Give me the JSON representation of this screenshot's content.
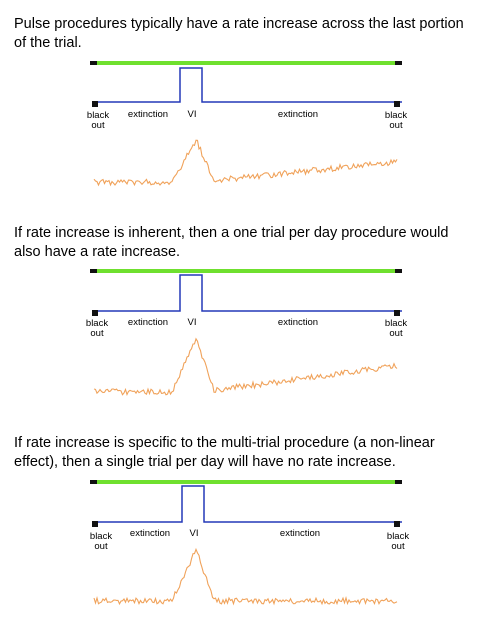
{
  "colors": {
    "stimulus_bar": "#6fe02e",
    "schedule_line": "#2438b8",
    "rate_trace": "#f0a25a",
    "bar_end": "#111111"
  },
  "labels": {
    "black_out": "black\nout",
    "extinction": "extinction",
    "vi": "VI"
  },
  "panels": [
    {
      "caption": "Pulse procedures typically have a rate increase across the last portion of the trial.",
      "rate_shape": "pulse-with-terminal-rate-increase"
    },
    {
      "caption": "If rate increase is inherent, then a one trial per day procedure would also have a rate increase.",
      "rate_shape": "pulse-with-terminal-rate-increase"
    },
    {
      "caption": "If rate increase is specific to the multi-trial procedure (a non-linear effect), then a single trial per day will have no rate increase.",
      "rate_shape": "pulse-without-rate-increase"
    }
  ]
}
